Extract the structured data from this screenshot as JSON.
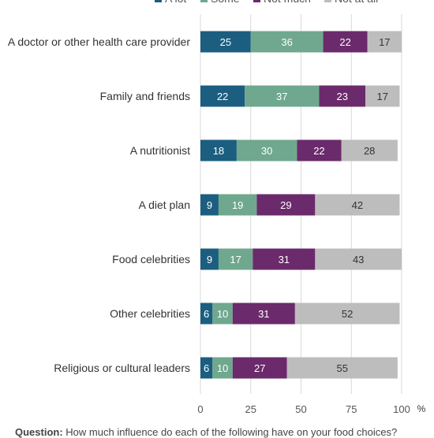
{
  "chart_data": {
    "type": "bar",
    "orientation": "horizontal",
    "stacked": true,
    "categories": [
      "A doctor or other health care provider",
      "Family and friends",
      "A nutritionist",
      "A diet plan",
      "Food celebrities",
      "Other celebrities",
      "Religious or cultural leaders"
    ],
    "series": [
      {
        "name": "A lot",
        "color": "#1b5e80",
        "label_color": "#ffffff",
        "values": [
          25,
          22,
          18,
          9,
          9,
          6,
          6
        ]
      },
      {
        "name": "Some",
        "color": "#6fa88e",
        "label_color": "#ffffff",
        "values": [
          36,
          37,
          30,
          19,
          17,
          10,
          10
        ]
      },
      {
        "name": "Not much",
        "color": "#6b2a6b",
        "label_color": "#ffffff",
        "values": [
          22,
          23,
          22,
          29,
          31,
          31,
          27
        ]
      },
      {
        "name": "Not at all",
        "color": "#bdbdbd",
        "label_color": "#333333",
        "values": [
          17,
          17,
          28,
          42,
          43,
          52,
          55
        ]
      }
    ],
    "xlim": [
      0,
      100
    ],
    "xticks": [
      0,
      25,
      50,
      75,
      100
    ],
    "x_unit": "%",
    "grid": true,
    "legend_position": "top"
  },
  "question": {
    "prefix": "Question:",
    "text": "How much influence do each of the following have on your food choices?"
  }
}
